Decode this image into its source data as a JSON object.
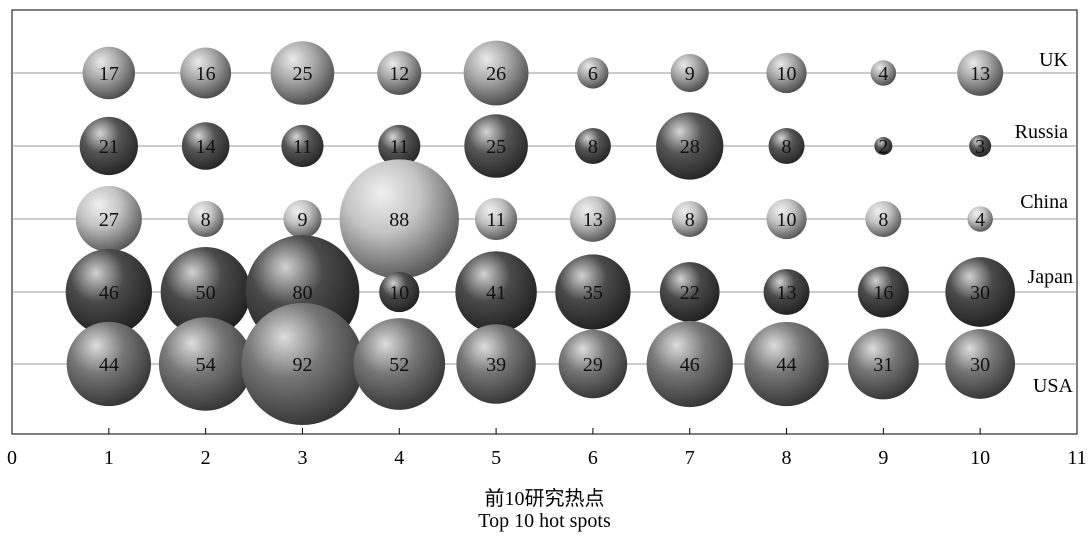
{
  "chart_data": {
    "type": "bubble",
    "xlim": [
      0,
      11
    ],
    "x_ticks": [
      "0",
      "1",
      "2",
      "3",
      "4",
      "5",
      "6",
      "7",
      "8",
      "9",
      "10",
      "11"
    ],
    "x": [
      1,
      2,
      3,
      4,
      5,
      6,
      7,
      8,
      9,
      10
    ],
    "xlabel_cn": "前10研究热点",
    "xlabel_en": "Top 10 hot spots",
    "series": [
      {
        "name": "UK",
        "values": [
          17,
          16,
          25,
          12,
          26,
          6,
          9,
          10,
          4,
          13
        ]
      },
      {
        "name": "Russia",
        "values": [
          21,
          14,
          11,
          11,
          25,
          8,
          28,
          8,
          2,
          3
        ]
      },
      {
        "name": "China",
        "values": [
          27,
          8,
          9,
          88,
          11,
          13,
          8,
          10,
          8,
          4
        ]
      },
      {
        "name": "Japan",
        "values": [
          46,
          50,
          80,
          10,
          41,
          35,
          22,
          13,
          16,
          30
        ]
      },
      {
        "name": "USA",
        "values": [
          44,
          54,
          92,
          52,
          39,
          29,
          46,
          44,
          31,
          30
        ]
      }
    ],
    "colors": {
      "UK": "#aaaaaa",
      "Russia": "#555555",
      "China": "#c4c4c4",
      "Japan": "#4a4a4a",
      "USA": "#777777"
    },
    "grid": false
  }
}
